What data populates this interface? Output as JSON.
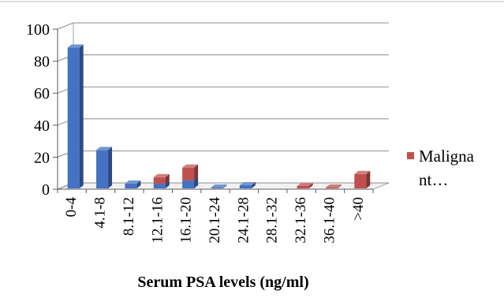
{
  "chart_data": {
    "type": "bar",
    "categories": [
      "0-4",
      "4.1-8",
      "8.1-12",
      "12.1-16",
      "16.1-20",
      "20.1-24",
      "24.1-28",
      "28.1-32",
      "32.1-36",
      "36.1-40",
      ">40"
    ],
    "series": [
      {
        "color": "#4472c4",
        "values": [
          88,
          24,
          3,
          3,
          5,
          0.5,
          2,
          0,
          0,
          0,
          0
        ]
      },
      {
        "name": "Malignant…",
        "color": "#c0504d",
        "values": [
          0,
          0,
          0,
          4,
          8,
          0,
          0,
          0,
          1.5,
          0.5,
          9
        ]
      }
    ],
    "xlabel": "Serum PSA levels (ng/ml)",
    "ylim": [
      0,
      100
    ],
    "yticks": [
      0,
      20,
      40,
      60,
      80,
      100
    ],
    "grid": true,
    "legend_position": "right",
    "legend_lines": [
      "Maligna",
      "nt…"
    ]
  }
}
